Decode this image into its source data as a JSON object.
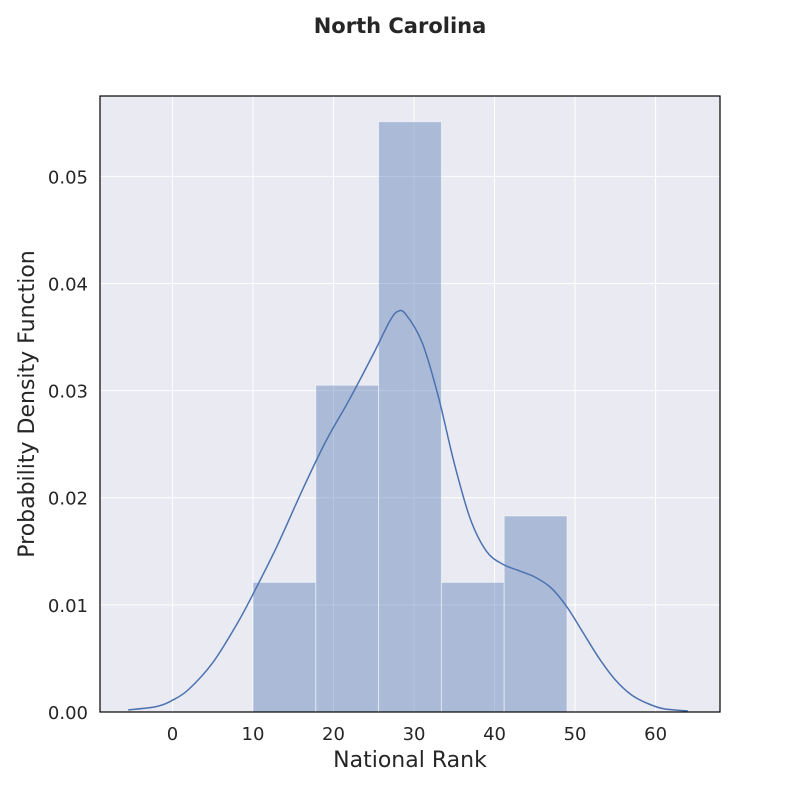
{
  "chart_data": {
    "type": "bar",
    "title": "North Carolina",
    "xlabel": "National Rank",
    "ylabel": "Probability Density Function",
    "xlim": [
      -9,
      68
    ],
    "ylim": [
      0,
      0.0575
    ],
    "xticks": [
      0,
      10,
      20,
      30,
      40,
      50,
      60
    ],
    "yticks": [
      0.0,
      0.01,
      0.02,
      0.03,
      0.04,
      0.05
    ],
    "ytick_labels": [
      "0.00",
      "0.01",
      "0.02",
      "0.03",
      "0.04",
      "0.05"
    ],
    "grid": true,
    "histogram": {
      "bins": [
        {
          "x0": 10,
          "x1": 17.8,
          "density": 0.0121
        },
        {
          "x0": 17.8,
          "x1": 25.6,
          "density": 0.0305
        },
        {
          "x0": 25.6,
          "x1": 33.4,
          "density": 0.0551
        },
        {
          "x0": 33.4,
          "x1": 41.2,
          "density": 0.0121
        },
        {
          "x0": 41.2,
          "x1": 49.0,
          "density": 0.0183
        }
      ],
      "color": "#4c72b0",
      "opacity": 0.4
    },
    "kde": {
      "color": "#4c72b0",
      "x": [
        -5.5,
        -2,
        0,
        2,
        5,
        8,
        10,
        13,
        16,
        19,
        22,
        25,
        27,
        28,
        29,
        31,
        33,
        35,
        37,
        39,
        41,
        43,
        45,
        47,
        49,
        51,
        53,
        55,
        57,
        59,
        61,
        64
      ],
      "y": [
        0.0002,
        0.0005,
        0.0011,
        0.0021,
        0.0046,
        0.0082,
        0.011,
        0.0155,
        0.0205,
        0.0252,
        0.0292,
        0.0335,
        0.0365,
        0.0374,
        0.0371,
        0.0345,
        0.0295,
        0.0232,
        0.018,
        0.015,
        0.0138,
        0.0132,
        0.0126,
        0.0116,
        0.0098,
        0.0074,
        0.005,
        0.003,
        0.0016,
        0.0008,
        0.0003,
        0.0001
      ]
    }
  }
}
